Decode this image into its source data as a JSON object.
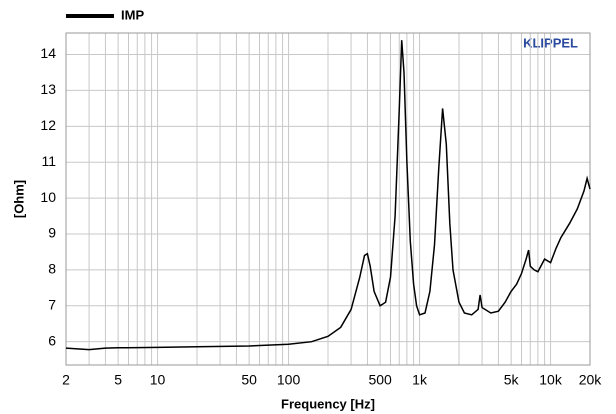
{
  "chart_data": {
    "type": "line",
    "legend": "top-left",
    "brand": "KLIPPEL",
    "xlabel": "Frequency [Hz]",
    "ylabel": "[Ohm]",
    "xscale": "log",
    "grid": true,
    "xlim": [
      2,
      20000
    ],
    "ylim": [
      5.35,
      14.6
    ],
    "xticks": [
      2,
      5,
      10,
      50,
      100,
      500,
      {
        "value": 1000,
        "label": "1k"
      },
      {
        "value": 5000,
        "label": "5k"
      },
      {
        "value": 10000,
        "label": "10k"
      },
      {
        "value": 20000,
        "label": "20k"
      }
    ],
    "x_minor_ticks": [
      3,
      4,
      6,
      7,
      8,
      9,
      20,
      30,
      40,
      60,
      70,
      80,
      90,
      200,
      300,
      400,
      600,
      700,
      800,
      900,
      2000,
      3000,
      4000,
      6000,
      7000,
      8000,
      9000
    ],
    "yticks": [
      6,
      7,
      8,
      9,
      10,
      11,
      12,
      13,
      14
    ],
    "series": [
      {
        "name": "IMP",
        "color": "#000000",
        "x": [
          2,
          3,
          4,
          5,
          10,
          20,
          50,
          100,
          150,
          200,
          250,
          300,
          350,
          380,
          400,
          420,
          450,
          500,
          550,
          600,
          650,
          700,
          730,
          760,
          800,
          850,
          900,
          950,
          1000,
          1100,
          1200,
          1300,
          1400,
          1500,
          1600,
          1700,
          1800,
          2000,
          2200,
          2500,
          2800,
          2900,
          3000,
          3500,
          4000,
          4500,
          5000,
          5500,
          6000,
          6500,
          6800,
          7000,
          7500,
          8000,
          9000,
          10000,
          11000,
          12000,
          14000,
          16000,
          18000,
          19000,
          20000
        ],
        "values": [
          5.82,
          5.78,
          5.82,
          5.83,
          5.84,
          5.86,
          5.88,
          5.93,
          6.0,
          6.15,
          6.4,
          6.9,
          7.8,
          8.4,
          8.45,
          8.1,
          7.4,
          7.0,
          7.1,
          7.8,
          9.5,
          12.5,
          14.4,
          13.5,
          11.0,
          8.8,
          7.6,
          7.0,
          6.75,
          6.8,
          7.4,
          8.7,
          10.8,
          12.5,
          11.5,
          9.3,
          8.0,
          7.1,
          6.8,
          6.75,
          6.9,
          7.3,
          6.95,
          6.8,
          6.85,
          7.1,
          7.4,
          7.6,
          7.9,
          8.3,
          8.55,
          8.1,
          8.0,
          7.95,
          8.3,
          8.2,
          8.6,
          8.9,
          9.3,
          9.7,
          10.2,
          10.55,
          10.25
        ]
      }
    ]
  }
}
